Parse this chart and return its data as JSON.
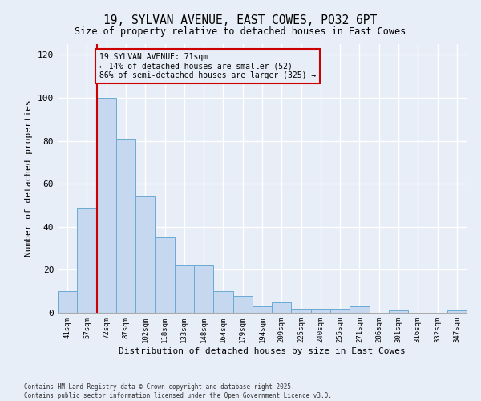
{
  "title_line1": "19, SYLVAN AVENUE, EAST COWES, PO32 6PT",
  "title_line2": "Size of property relative to detached houses in East Cowes",
  "xlabel": "Distribution of detached houses by size in East Cowes",
  "ylabel": "Number of detached properties",
  "categories": [
    "41sqm",
    "57sqm",
    "72sqm",
    "87sqm",
    "102sqm",
    "118sqm",
    "133sqm",
    "148sqm",
    "164sqm",
    "179sqm",
    "194sqm",
    "209sqm",
    "225sqm",
    "240sqm",
    "255sqm",
    "271sqm",
    "286sqm",
    "301sqm",
    "316sqm",
    "332sqm",
    "347sqm"
  ],
  "values": [
    10,
    49,
    100,
    81,
    54,
    35,
    22,
    22,
    10,
    8,
    3,
    5,
    2,
    2,
    2,
    3,
    0,
    1,
    0,
    0,
    1
  ],
  "bar_color": "#c5d8f0",
  "bar_edge_color": "#6aaad4",
  "bg_color": "#e8eef8",
  "grid_color": "#ffffff",
  "vline_color": "#cc0000",
  "annotation_text": "19 SYLVAN AVENUE: 71sqm\n← 14% of detached houses are smaller (52)\n86% of semi-detached houses are larger (325) →",
  "annotation_box_edge_color": "#cc0000",
  "annotation_box_face_color": "#e8eef8",
  "ylim": [
    0,
    125
  ],
  "yticks": [
    0,
    20,
    40,
    60,
    80,
    100,
    120
  ],
  "footer_line1": "Contains HM Land Registry data © Crown copyright and database right 2025.",
  "footer_line2": "Contains public sector information licensed under the Open Government Licence v3.0."
}
